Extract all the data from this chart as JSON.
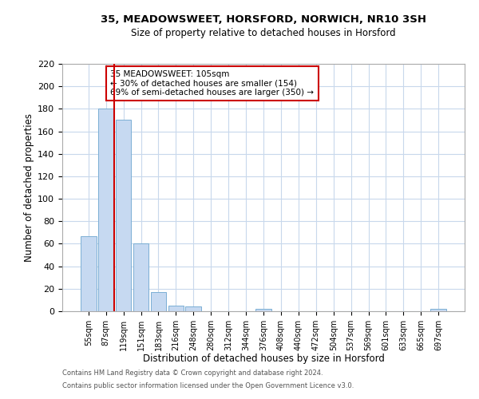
{
  "title": "35, MEADOWSWEET, HORSFORD, NORWICH, NR10 3SH",
  "subtitle": "Size of property relative to detached houses in Horsford",
  "xlabel": "Distribution of detached houses by size in Horsford",
  "ylabel": "Number of detached properties",
  "bar_labels": [
    "55sqm",
    "87sqm",
    "119sqm",
    "151sqm",
    "183sqm",
    "216sqm",
    "248sqm",
    "280sqm",
    "312sqm",
    "344sqm",
    "376sqm",
    "408sqm",
    "440sqm",
    "472sqm",
    "504sqm",
    "537sqm",
    "569sqm",
    "601sqm",
    "633sqm",
    "665sqm",
    "697sqm"
  ],
  "bar_values": [
    67,
    180,
    170,
    60,
    17,
    5,
    4,
    0,
    0,
    0,
    2,
    0,
    0,
    0,
    0,
    0,
    0,
    0,
    0,
    0,
    2
  ],
  "bar_color": "#c6d9f1",
  "bar_edge_color": "#7bafd4",
  "vline_color": "#cc0000",
  "annotation_title": "35 MEADOWSWEET: 105sqm",
  "annotation_line1": "← 30% of detached houses are smaller (154)",
  "annotation_line2": "69% of semi-detached houses are larger (350) →",
  "annotation_box_color": "#ffffff",
  "annotation_box_edge": "#cc0000",
  "ylim": [
    0,
    220
  ],
  "yticks": [
    0,
    20,
    40,
    60,
    80,
    100,
    120,
    140,
    160,
    180,
    200,
    220
  ],
  "footer_line1": "Contains HM Land Registry data © Crown copyright and database right 2024.",
  "footer_line2": "Contains public sector information licensed under the Open Government Licence v3.0.",
  "bg_color": "#ffffff",
  "grid_color": "#c8d8ec"
}
